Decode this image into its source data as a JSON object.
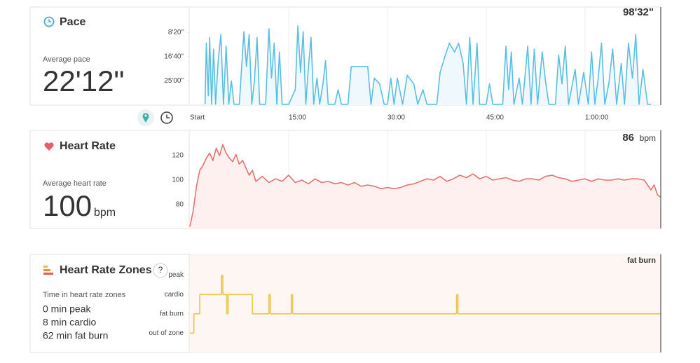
{
  "chart_data": [
    {
      "type": "line",
      "title": "Pace",
      "summary_label": "Average pace",
      "summary_value": "22'12\"",
      "current_value": "98'32\"",
      "color": "#5bbfe3",
      "fill": "#eef8fd",
      "xlim": [
        0,
        71.5
      ],
      "xticks": [
        {
          "value": 0,
          "label": "Start"
        },
        {
          "value": 15,
          "label": "15:00"
        },
        {
          "value": 30,
          "label": "30:00"
        },
        {
          "value": 45,
          "label": "45:00"
        },
        {
          "value": 60,
          "label": "1:00:00"
        }
      ],
      "ylim": [
        33.3,
        0
      ],
      "yticks": [
        {
          "value": 8.333,
          "label": "8'20\""
        },
        {
          "value": 16.667,
          "label": "16'40\""
        },
        {
          "value": 25,
          "label": "25'00\""
        }
      ],
      "x": [
        2.3,
        2.5,
        2.8,
        3.0,
        3.3,
        3.6,
        3.9,
        4.3,
        4.7,
        5.1,
        5.5,
        5.9,
        6.3,
        6.7,
        7.5,
        8.2,
        8.6,
        9.0,
        9.4,
        9.8,
        10.2,
        10.6,
        11.5,
        12.0,
        12.4,
        12.8,
        13.2,
        13.6,
        14.0,
        15,
        16.0,
        16.4,
        16.8,
        17.2,
        17.6,
        18.0,
        18.4,
        18.8,
        19.3,
        19.7,
        20.2,
        20.6,
        21.0,
        22,
        22.5,
        23,
        24,
        24.5,
        27,
        27.5,
        28,
        28.8,
        29.5,
        30,
        30.5,
        31,
        31.5,
        32.3,
        33,
        34,
        34.6,
        35.4,
        36,
        37.5,
        38,
        38.8,
        39.4,
        40.2,
        40.8,
        41.5,
        42,
        42.5,
        43,
        43.6,
        44,
        45,
        45.5,
        46,
        47.5,
        48,
        48.4,
        48.8,
        49.2,
        50,
        50.5,
        51.3,
        51.8,
        52.3,
        52.8,
        53.5,
        54,
        54.5,
        55.5,
        56,
        56.5,
        57,
        57.5,
        58.5,
        59,
        59.8,
        60.5,
        61,
        61.5,
        62,
        62.5,
        63,
        63.6,
        64.2,
        64.8,
        65.5,
        66,
        66.6,
        67.2,
        67.7,
        68.2,
        68.8,
        69.5,
        70
      ],
      "values": [
        33,
        12,
        30,
        10,
        33,
        14,
        33,
        18,
        9,
        33,
        13,
        33,
        25,
        33,
        33,
        8,
        20,
        9,
        33,
        25,
        10,
        33,
        33,
        7,
        24,
        12,
        33,
        15,
        33,
        33,
        28,
        6,
        22,
        8,
        33,
        20,
        10,
        33,
        24,
        33,
        26,
        18,
        33,
        33,
        28,
        33,
        33,
        20,
        20,
        33,
        24,
        26,
        33,
        33,
        24,
        33,
        24,
        33,
        23,
        26,
        33,
        28,
        33,
        33,
        22,
        16,
        12,
        15,
        12,
        19,
        33,
        10,
        33,
        12,
        33,
        33,
        26,
        33,
        33,
        13,
        28,
        15,
        33,
        24,
        33,
        13,
        33,
        14,
        33,
        15,
        25,
        33,
        33,
        16,
        26,
        13,
        33,
        21,
        33,
        22,
        33,
        15,
        33,
        24,
        12,
        33,
        26,
        14,
        33,
        19,
        33,
        12,
        24,
        9,
        33,
        21,
        33,
        33
      ]
    },
    {
      "type": "line",
      "title": "Heart Rate",
      "summary_label": "Average heart rate",
      "summary_value": "100",
      "summary_unit": "bpm",
      "current_value": "86",
      "current_unit": "bpm",
      "color": "#e4736f",
      "fill": "#fdf0ef",
      "xlim": [
        0,
        71.5
      ],
      "ylim": [
        60.6,
        139.4
      ],
      "yticks": [
        80,
        100,
        120
      ],
      "x": [
        0,
        0.5,
        1,
        1.5,
        2,
        2.5,
        3,
        3.5,
        4,
        4.5,
        5,
        5.5,
        6,
        6.5,
        7,
        7.5,
        8,
        8.5,
        9,
        9.5,
        10,
        11,
        12,
        13,
        14,
        15,
        16,
        17,
        18,
        19,
        20,
        21,
        22,
        23,
        24,
        25,
        26,
        27,
        28,
        29,
        30,
        31,
        32,
        33,
        34,
        35,
        36,
        37,
        38,
        39,
        40,
        41,
        42,
        43,
        44,
        45,
        46,
        47,
        48,
        49,
        50,
        51,
        52,
        53,
        54,
        55,
        56,
        57,
        58,
        59,
        60,
        61,
        62,
        63,
        64,
        65,
        66,
        67,
        68,
        69,
        70,
        70.5,
        71,
        71.5
      ],
      "values": [
        62,
        75,
        95,
        108,
        112,
        118,
        122,
        116,
        126,
        120,
        129,
        122,
        118,
        115,
        121,
        113,
        116,
        110,
        104,
        108,
        99,
        103,
        98,
        101,
        99,
        104,
        98,
        100,
        97,
        101,
        98,
        99,
        97,
        98,
        96,
        98,
        95,
        96,
        95,
        93,
        94,
        93,
        94,
        96,
        97,
        99,
        101,
        100,
        103,
        99,
        101,
        104,
        102,
        105,
        101,
        103,
        100,
        101,
        102,
        100,
        99,
        101,
        101,
        100,
        103,
        104,
        102,
        101,
        99,
        100,
        101,
        99,
        101,
        100,
        100,
        101,
        100,
        101,
        101,
        100,
        92,
        96,
        88,
        86
      ]
    },
    {
      "type": "step",
      "title": "Heart Rate Zones",
      "help": "?",
      "summary_label": "Time in heart rate zones",
      "summary_lines": [
        "0 min peak",
        "8 min cardio",
        "62 min fat burn"
      ],
      "current_value": "fat burn",
      "color": "#ebc858",
      "fill": "#fdf6f3",
      "xlim": [
        0,
        71.5
      ],
      "ylim": [
        -1,
        4
      ],
      "yticks": [
        {
          "value": 0,
          "label": "out of zone"
        },
        {
          "value": 1,
          "label": "fat burn"
        },
        {
          "value": 2,
          "label": "cardio"
        },
        {
          "value": 3,
          "label": "peak"
        }
      ],
      "x": [
        0,
        0.6,
        1.5,
        4.8,
        5.0,
        5.6,
        5.8,
        9.5,
        12.0,
        12.2,
        15.4,
        15.6,
        40.5,
        40.7
      ],
      "values": [
        0,
        1,
        2,
        3,
        2,
        1,
        2,
        1,
        2,
        1,
        2,
        1,
        2,
        1
      ]
    }
  ]
}
